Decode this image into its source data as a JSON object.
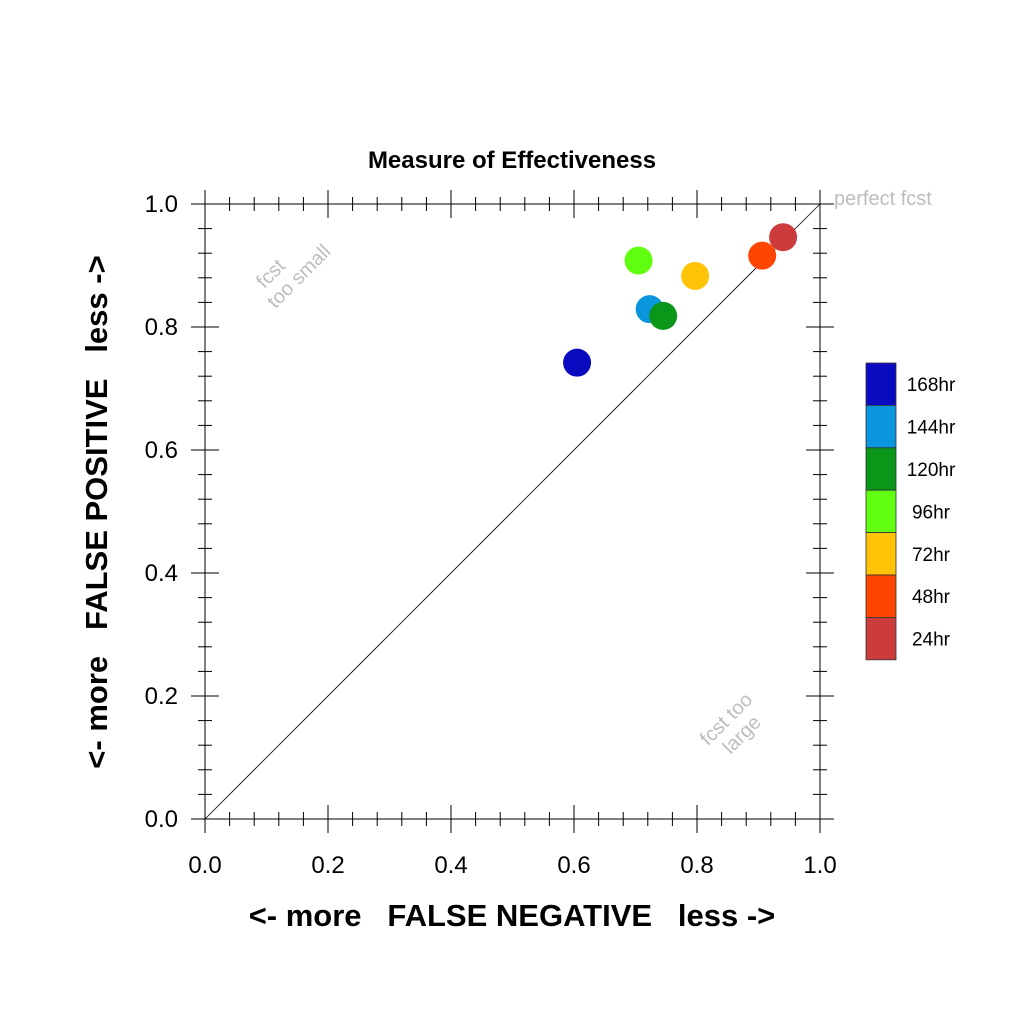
{
  "chart_data": {
    "type": "scatter",
    "title": "Measure of Effectiveness",
    "xlabel": "<- more   FALSE NEGATIVE   less ->",
    "ylabel": "<- more   FALSE POSITIVE   less ->",
    "xlim": [
      0.0,
      1.0
    ],
    "ylim": [
      0.0,
      1.0
    ],
    "x_ticks": [
      0.0,
      0.2,
      0.4,
      0.6,
      0.8,
      1.0
    ],
    "y_ticks": [
      0.0,
      0.2,
      0.4,
      0.6,
      0.8,
      1.0
    ],
    "x_tick_labels": [
      "0.0",
      "0.2",
      "0.4",
      "0.6",
      "0.8",
      "1.0"
    ],
    "y_tick_labels": [
      "0.0",
      "0.2",
      "0.4",
      "0.6",
      "0.8",
      "1.0"
    ],
    "minor_ticks_per_interval": 5,
    "grid": false,
    "diagonal_reference_line": true,
    "legend_position": "right",
    "annotations": {
      "perfect": "perfect fcst",
      "too_small": [
        "fcst",
        "too small"
      ],
      "too_large": [
        "fcst too",
        "large"
      ]
    },
    "series": [
      {
        "name": "168hr",
        "color": "#0a0ac0",
        "x": 0.605,
        "y": 0.742
      },
      {
        "name": "144hr",
        "color": "#0a96dc",
        "x": 0.723,
        "y": 0.829
      },
      {
        "name": "120hr",
        "color": "#0a9619",
        "x": 0.745,
        "y": 0.818
      },
      {
        "name": "96hr",
        "color": "#61ff10",
        "x": 0.705,
        "y": 0.908
      },
      {
        "name": "72hr",
        "color": "#ffc308",
        "x": 0.797,
        "y": 0.883
      },
      {
        "name": "48hr",
        "color": "#ff4600",
        "x": 0.906,
        "y": 0.916
      },
      {
        "name": "24hr",
        "color": "#cd3c3c",
        "x": 0.94,
        "y": 0.946
      }
    ]
  }
}
